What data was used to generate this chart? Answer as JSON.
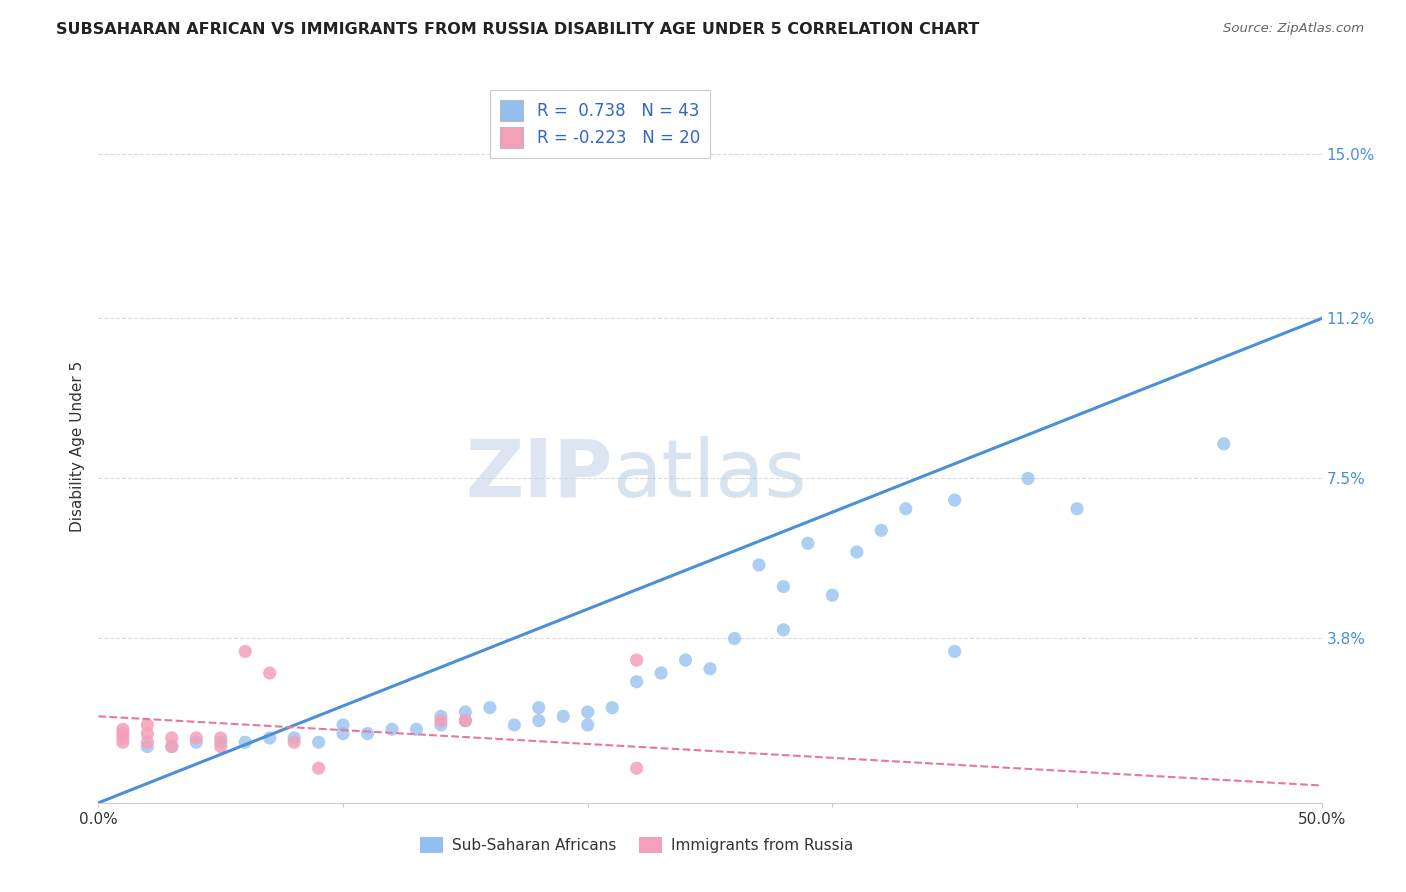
{
  "title": "SUBSAHARAN AFRICAN VS IMMIGRANTS FROM RUSSIA DISABILITY AGE UNDER 5 CORRELATION CHART",
  "source": "Source: ZipAtlas.com",
  "ylabel": "Disability Age Under 5",
  "xlim": [
    0.0,
    0.5
  ],
  "ylim": [
    0.0,
    0.165
  ],
  "xticks": [
    0.0,
    0.1,
    0.2,
    0.3,
    0.4,
    0.5
  ],
  "xticklabels": [
    "0.0%",
    "",
    "",
    "",
    "",
    "50.0%"
  ],
  "ytick_labels_right": [
    "15.0%",
    "11.2%",
    "7.5%",
    "3.8%",
    ""
  ],
  "ytick_vals_right": [
    0.15,
    0.112,
    0.075,
    0.038,
    0.0
  ],
  "r_blue": 0.738,
  "n_blue": 43,
  "r_pink": -0.223,
  "n_pink": 20,
  "blue_scatter_x": [
    0.02,
    0.03,
    0.04,
    0.05,
    0.06,
    0.07,
    0.08,
    0.09,
    0.1,
    0.1,
    0.11,
    0.12,
    0.13,
    0.14,
    0.14,
    0.15,
    0.15,
    0.16,
    0.17,
    0.18,
    0.18,
    0.19,
    0.2,
    0.2,
    0.21,
    0.22,
    0.23,
    0.24,
    0.25,
    0.26,
    0.27,
    0.28,
    0.29,
    0.3,
    0.31,
    0.32,
    0.33,
    0.35,
    0.38,
    0.4,
    0.46,
    0.28,
    0.35
  ],
  "blue_scatter_y": [
    0.013,
    0.013,
    0.014,
    0.014,
    0.014,
    0.015,
    0.015,
    0.014,
    0.016,
    0.018,
    0.016,
    0.017,
    0.017,
    0.018,
    0.02,
    0.019,
    0.021,
    0.022,
    0.018,
    0.019,
    0.022,
    0.02,
    0.018,
    0.021,
    0.022,
    0.028,
    0.03,
    0.033,
    0.031,
    0.038,
    0.055,
    0.05,
    0.06,
    0.048,
    0.058,
    0.063,
    0.068,
    0.07,
    0.075,
    0.068,
    0.083,
    0.04,
    0.035
  ],
  "pink_scatter_x": [
    0.01,
    0.01,
    0.01,
    0.01,
    0.02,
    0.02,
    0.02,
    0.03,
    0.04,
    0.05,
    0.06,
    0.07,
    0.09,
    0.14,
    0.15,
    0.22,
    0.22,
    0.03,
    0.05,
    0.08
  ],
  "pink_scatter_y": [
    0.014,
    0.015,
    0.016,
    0.017,
    0.014,
    0.016,
    0.018,
    0.015,
    0.015,
    0.015,
    0.035,
    0.03,
    0.008,
    0.019,
    0.019,
    0.008,
    0.033,
    0.013,
    0.013,
    0.014
  ],
  "blue_line_x": [
    0.0,
    0.5
  ],
  "blue_line_y": [
    0.0,
    0.112
  ],
  "pink_line_x": [
    0.0,
    0.5
  ],
  "pink_line_y": [
    0.02,
    0.004
  ],
  "blue_color": "#92BEF0",
  "pink_color": "#F4A0B8",
  "blue_line_color": "#4A90D9",
  "pink_line_color": "#E87898",
  "background_color": "#ffffff",
  "grid_color": "#D8DCE8",
  "watermark_zip": "ZIP",
  "watermark_atlas": "atlas",
  "legend_text_color": "#3366CC"
}
